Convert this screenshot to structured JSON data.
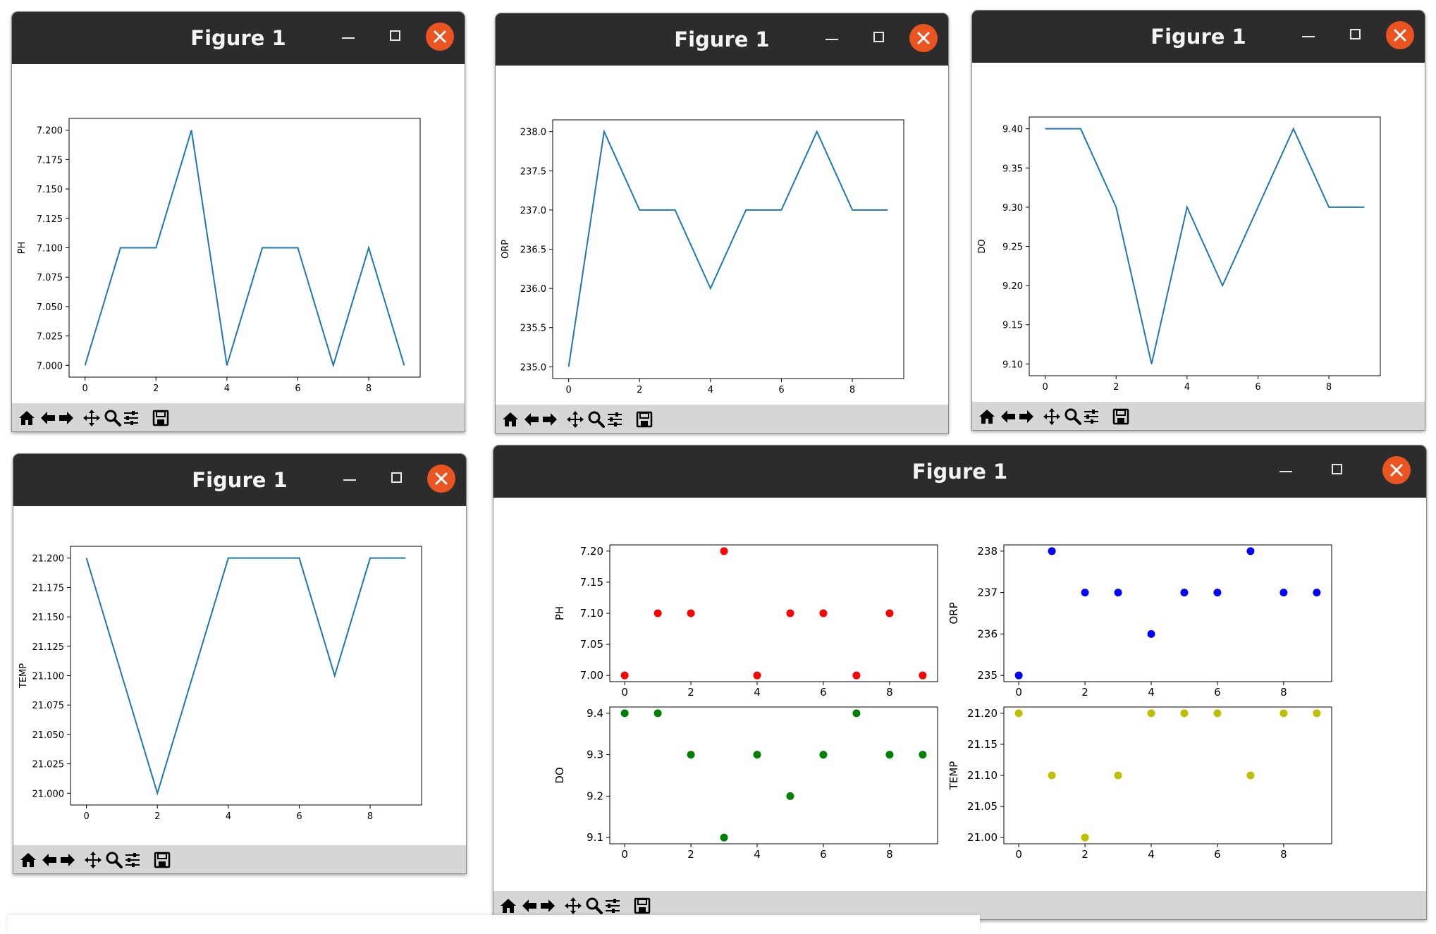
{
  "windows": [
    {
      "title": "Figure 1",
      "chart_data": {
        "type": "line",
        "x": [
          0,
          1,
          2,
          3,
          4,
          5,
          6,
          7,
          8,
          9
        ],
        "values": [
          7.0,
          7.1,
          7.1,
          7.2,
          7.0,
          7.1,
          7.1,
          7.0,
          7.1,
          7.0
        ],
        "ylabel": "PH",
        "xlim": [
          -0.45,
          9.45
        ],
        "ylim": [
          6.99,
          7.21
        ],
        "xticks": [
          "0",
          "2",
          "4",
          "6",
          "8"
        ],
        "yticks": [
          "7.000",
          "7.025",
          "7.050",
          "7.075",
          "7.100",
          "7.125",
          "7.150",
          "7.175",
          "7.200"
        ],
        "color": "#1f77b4"
      }
    },
    {
      "title": "Figure 1",
      "chart_data": {
        "type": "line",
        "x": [
          0,
          1,
          2,
          3,
          4,
          5,
          6,
          7,
          8,
          9
        ],
        "values": [
          235,
          238,
          237,
          237,
          236,
          237,
          237,
          238,
          237,
          237
        ],
        "ylabel": "ORP",
        "xlim": [
          -0.45,
          9.45
        ],
        "ylim": [
          234.85,
          238.15
        ],
        "xticks": [
          "0",
          "2",
          "4",
          "6",
          "8"
        ],
        "yticks": [
          "235.0",
          "235.5",
          "236.0",
          "236.5",
          "237.0",
          "237.5",
          "238.0"
        ],
        "color": "#1f77b4"
      }
    },
    {
      "title": "Figure 1",
      "chart_data": {
        "type": "line",
        "x": [
          0,
          1,
          2,
          3,
          4,
          5,
          6,
          7,
          8,
          9
        ],
        "values": [
          9.4,
          9.4,
          9.3,
          9.1,
          9.3,
          9.2,
          9.3,
          9.4,
          9.3,
          9.3
        ],
        "ylabel": "DO",
        "xlim": [
          -0.45,
          9.45
        ],
        "ylim": [
          9.085,
          9.415
        ],
        "xticks": [
          "0",
          "2",
          "4",
          "6",
          "8"
        ],
        "yticks": [
          "9.10",
          "9.15",
          "9.20",
          "9.25",
          "9.30",
          "9.35",
          "9.40"
        ],
        "color": "#1f77b4"
      }
    },
    {
      "title": "Figure 1",
      "chart_data": {
        "type": "line",
        "x": [
          0,
          1,
          2,
          3,
          4,
          5,
          6,
          7,
          8,
          9
        ],
        "values": [
          21.2,
          21.1,
          21.0,
          21.1,
          21.2,
          21.2,
          21.2,
          21.1,
          21.2,
          21.2
        ],
        "ylabel": "TEMP",
        "xlim": [
          -0.45,
          9.45
        ],
        "ylim": [
          20.99,
          21.21
        ],
        "xticks": [
          "0",
          "2",
          "4",
          "6",
          "8"
        ],
        "yticks": [
          "21.000",
          "21.025",
          "21.050",
          "21.075",
          "21.100",
          "21.125",
          "21.150",
          "21.175",
          "21.200"
        ],
        "color": "#1f77b4"
      }
    },
    {
      "title": "Figure 1",
      "chart_data": [
        {
          "type": "scatter",
          "x": [
            0,
            1,
            2,
            3,
            4,
            5,
            6,
            7,
            8,
            9
          ],
          "values": [
            7.0,
            7.1,
            7.1,
            7.2,
            7.0,
            7.1,
            7.1,
            7.0,
            7.1,
            7.0
          ],
          "ylabel": "PH",
          "xlim": [
            -0.45,
            9.45
          ],
          "ylim": [
            6.99,
            7.21
          ],
          "xticks": [
            "0",
            "2",
            "4",
            "6",
            "8"
          ],
          "yticks": [
            "7.00",
            "7.05",
            "7.10",
            "7.15",
            "7.20"
          ],
          "color": "#ff0000"
        },
        {
          "type": "scatter",
          "x": [
            0,
            1,
            2,
            3,
            4,
            5,
            6,
            7,
            8,
            9
          ],
          "values": [
            235,
            238,
            237,
            237,
            236,
            237,
            237,
            238,
            237,
            237
          ],
          "ylabel": "ORP",
          "xlim": [
            -0.45,
            9.45
          ],
          "ylim": [
            234.85,
            238.15
          ],
          "xticks": [
            "0",
            "2",
            "4",
            "6",
            "8"
          ],
          "yticks": [
            "235",
            "236",
            "237",
            "238"
          ],
          "color": "#0000ff"
        },
        {
          "type": "scatter",
          "x": [
            0,
            1,
            2,
            3,
            4,
            5,
            6,
            7,
            8,
            9
          ],
          "values": [
            9.4,
            9.4,
            9.3,
            9.1,
            9.3,
            9.2,
            9.3,
            9.4,
            9.3,
            9.3
          ],
          "ylabel": "DO",
          "xlim": [
            -0.45,
            9.45
          ],
          "ylim": [
            9.085,
            9.415
          ],
          "xticks": [
            "0",
            "2",
            "4",
            "6",
            "8"
          ],
          "yticks": [
            "9.1",
            "9.2",
            "9.3",
            "9.4"
          ],
          "color": "#008000"
        },
        {
          "type": "scatter",
          "x": [
            0,
            1,
            2,
            3,
            4,
            5,
            6,
            7,
            8,
            9
          ],
          "values": [
            21.2,
            21.1,
            21.0,
            21.1,
            21.2,
            21.2,
            21.2,
            21.1,
            21.2,
            21.2
          ],
          "ylabel": "TEMP",
          "xlim": [
            -0.45,
            9.45
          ],
          "ylim": [
            20.99,
            21.21
          ],
          "xticks": [
            "0",
            "2",
            "4",
            "6",
            "8"
          ],
          "yticks": [
            "21.00",
            "21.05",
            "21.10",
            "21.15",
            "21.20"
          ],
          "color": "#bfbf00"
        }
      ]
    }
  ],
  "toolbar": {
    "buttons": [
      {
        "icon": "home-icon"
      },
      {
        "icon": "back-arrow-icon"
      },
      {
        "icon": "forward-arrow-icon"
      },
      {
        "icon": "pan-icon"
      },
      {
        "icon": "zoom-icon"
      },
      {
        "icon": "configure-subplots-icon"
      },
      {
        "icon": "save-icon"
      }
    ]
  }
}
